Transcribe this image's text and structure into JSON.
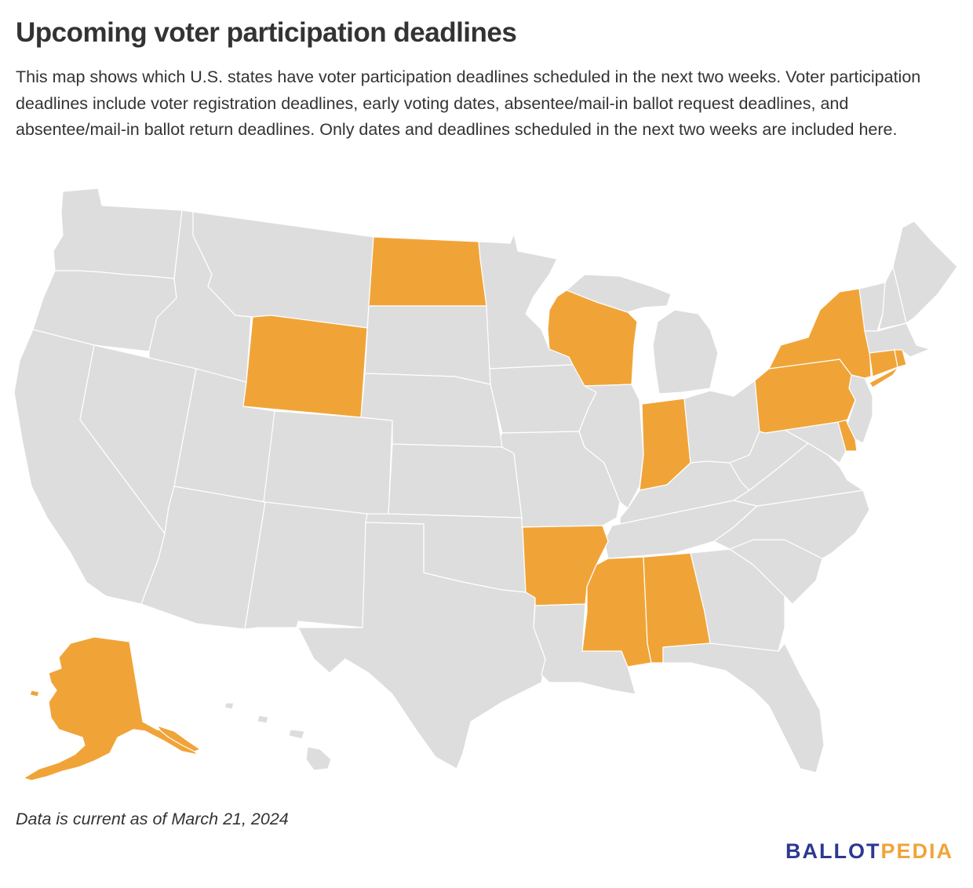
{
  "header": {
    "title": "Upcoming voter participation deadlines",
    "description": "This map shows which U.S. states have voter participation deadlines scheduled in the next two weeks. Voter participation deadlines include voter registration deadlines, early voting dates, absentee/mail-in ballot request deadlines, and absentee/mail-in ballot return deadlines. Only dates and deadlines scheduled in the next two weeks are included here."
  },
  "map": {
    "colors": {
      "highlighted": "#f0a438",
      "other": "#dddddd",
      "border": "#ffffff"
    },
    "highlighted_states": [
      "North Dakota",
      "Wyoming",
      "Wisconsin",
      "Indiana",
      "Arkansas",
      "Mississippi",
      "Alabama",
      "Pennsylvania",
      "New York",
      "Connecticut",
      "Rhode Island",
      "Delaware",
      "Alaska"
    ]
  },
  "footer": {
    "note": "Data is current as of March 21, 2024",
    "logo_part1": "BALLOT",
    "logo_part2": "PEDIA",
    "logo_colors": {
      "primary": "#2b3990",
      "accent": "#f0a438"
    }
  }
}
